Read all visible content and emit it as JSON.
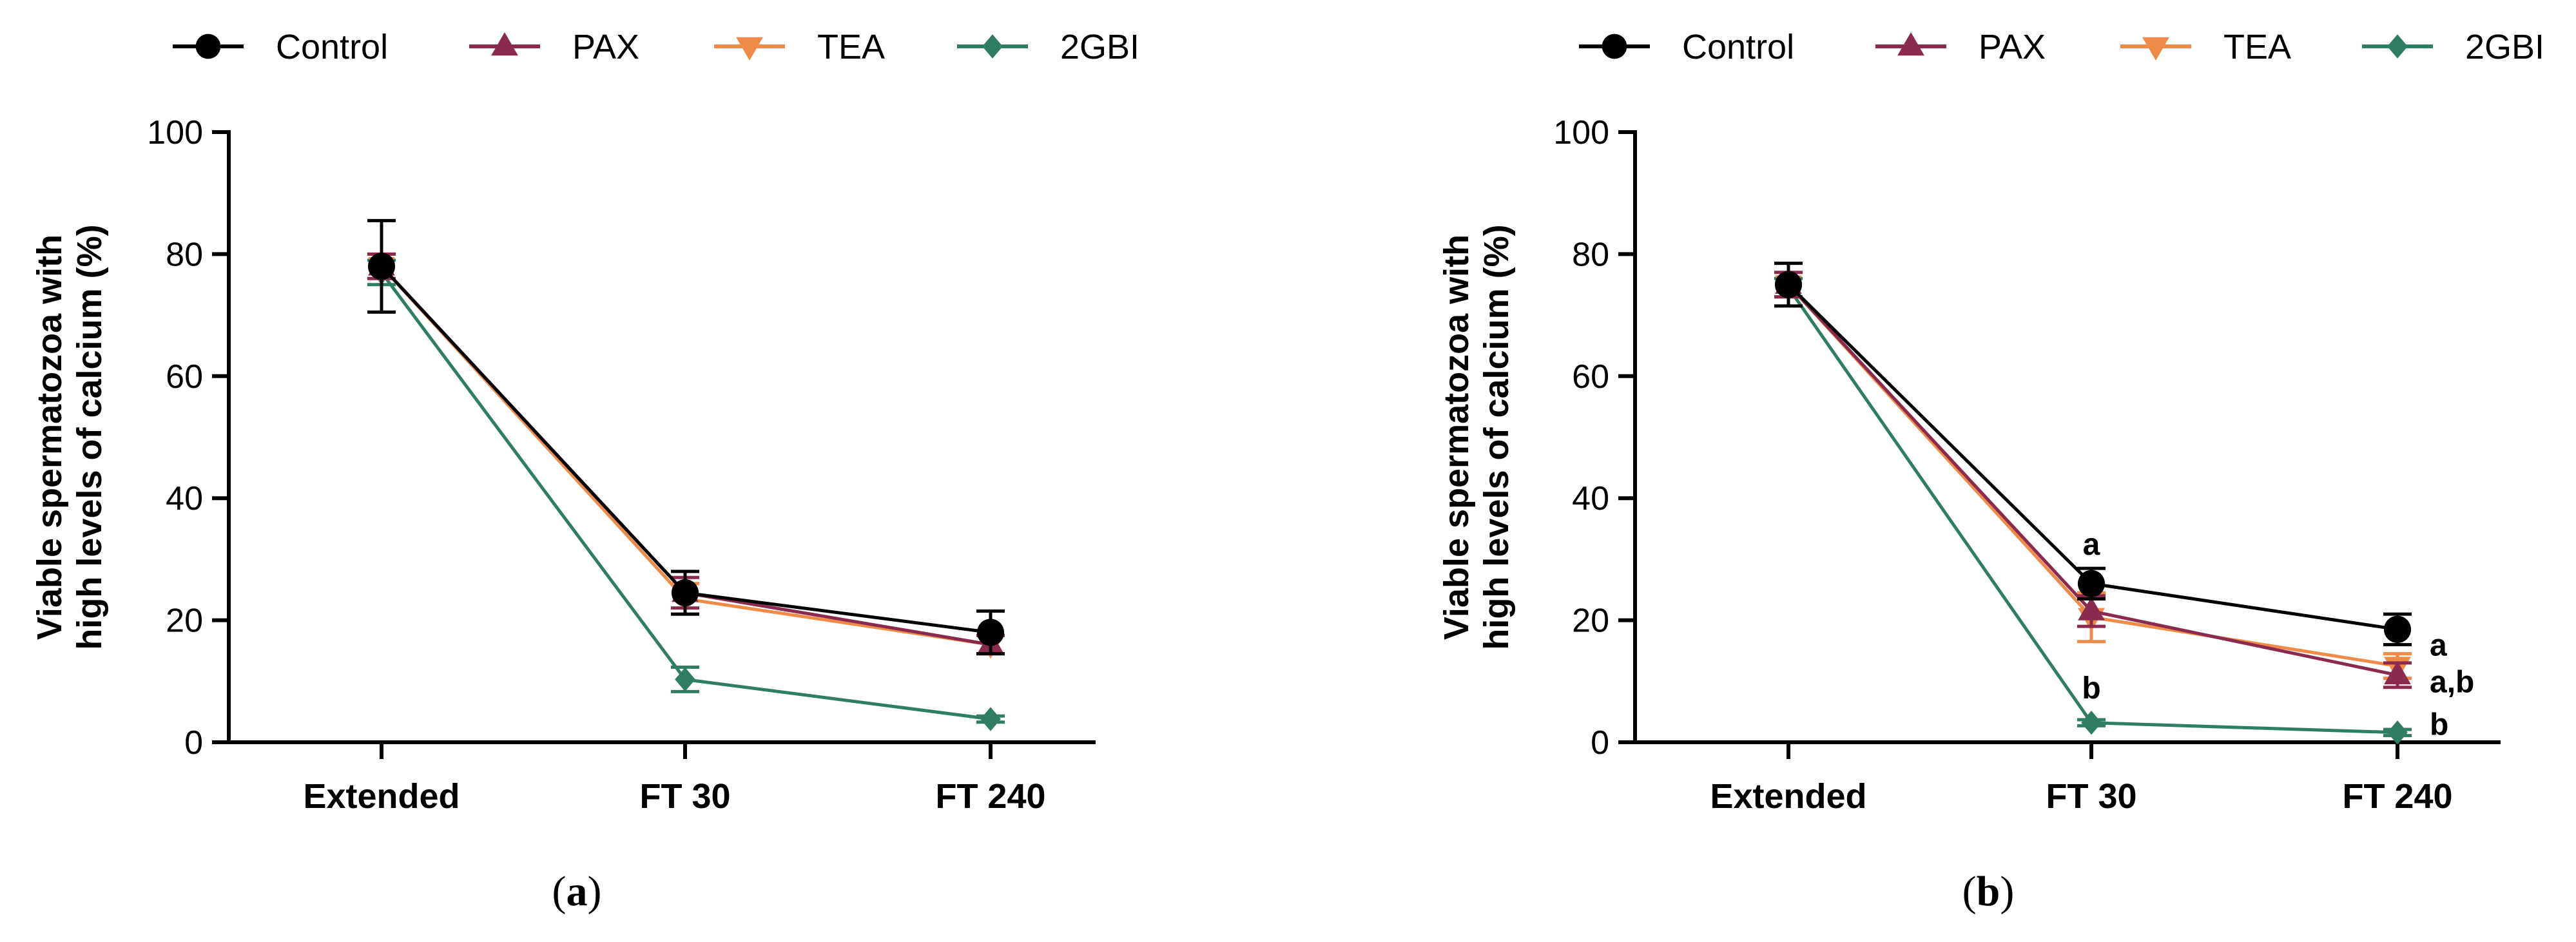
{
  "colors": {
    "Control": "#000000",
    "PAX": "#8b2a4f",
    "TEA": "#ee8b48",
    "2GBI": "#2f7d62"
  },
  "chart_data": [
    {
      "type": "line",
      "panel_label": {
        "open": "(",
        "letter": "a",
        "close": ")"
      },
      "ylabel_line1": "Viable spermatozoa with",
      "ylabel_line2": "high levels of calcium (%)",
      "xlabel": "",
      "ylim": [
        0,
        100
      ],
      "yticks": [
        0,
        20,
        40,
        60,
        80,
        100
      ],
      "categories": [
        "Extended",
        "FT 30",
        "FT 240"
      ],
      "legend": {
        "position": "top",
        "entries": [
          "Control",
          "PAX",
          "TEA",
          "2GBI"
        ]
      },
      "series": [
        {
          "name": "Control",
          "marker": "circle",
          "values": [
            78,
            24.5,
            18
          ],
          "errors": [
            7.5,
            3.5,
            3.5
          ]
        },
        {
          "name": "PAX",
          "marker": "triangle-up",
          "values": [
            78,
            24.5,
            16
          ],
          "errors": [
            2,
            2.5,
            1.5
          ]
        },
        {
          "name": "TEA",
          "marker": "triangle-down",
          "values": [
            78,
            23.5,
            16
          ],
          "errors": [
            2,
            2.5,
            1.5
          ]
        },
        {
          "name": "2GBI",
          "marker": "diamond",
          "values": [
            77,
            10.3,
            3.8
          ],
          "errors": [
            2,
            2,
            0.5
          ]
        }
      ],
      "annotations": []
    },
    {
      "type": "line",
      "panel_label": {
        "open": "(",
        "letter": "b",
        "close": ")"
      },
      "ylabel_line1": "Viable spermatozoa with",
      "ylabel_line2": "high levels of calcium (%)",
      "xlabel": "",
      "ylim": [
        0,
        100
      ],
      "yticks": [
        0,
        20,
        40,
        60,
        80,
        100
      ],
      "categories": [
        "Extended",
        "FT 30",
        "FT 240"
      ],
      "legend": {
        "position": "top",
        "entries": [
          "Control",
          "PAX",
          "TEA",
          "2GBI"
        ]
      },
      "series": [
        {
          "name": "Control",
          "marker": "circle",
          "values": [
            75,
            26,
            18.5
          ],
          "errors": [
            3.5,
            2.5,
            2.5
          ]
        },
        {
          "name": "PAX",
          "marker": "triangle-up",
          "values": [
            75,
            21.5,
            11
          ],
          "errors": [
            2,
            2.5,
            2
          ]
        },
        {
          "name": "TEA",
          "marker": "triangle-down",
          "values": [
            75,
            20.5,
            12.5
          ],
          "errors": [
            2,
            4,
            2
          ]
        },
        {
          "name": "2GBI",
          "marker": "diamond",
          "values": [
            74.5,
            3.2,
            1.6
          ],
          "errors": [
            1.5,
            0.5,
            0.5
          ]
        }
      ],
      "annotations": [
        {
          "text": "a",
          "category": "FT 30",
          "value": 32.5,
          "side": "center"
        },
        {
          "text": "b",
          "category": "FT 30",
          "value": 9,
          "side": "center"
        },
        {
          "text": "a",
          "category": "FT 240",
          "value": 16,
          "side": "right"
        },
        {
          "text": "a,b",
          "category": "FT 240",
          "value": 10,
          "side": "right"
        },
        {
          "text": "b",
          "category": "FT 240",
          "value": 3,
          "side": "right"
        }
      ]
    }
  ]
}
